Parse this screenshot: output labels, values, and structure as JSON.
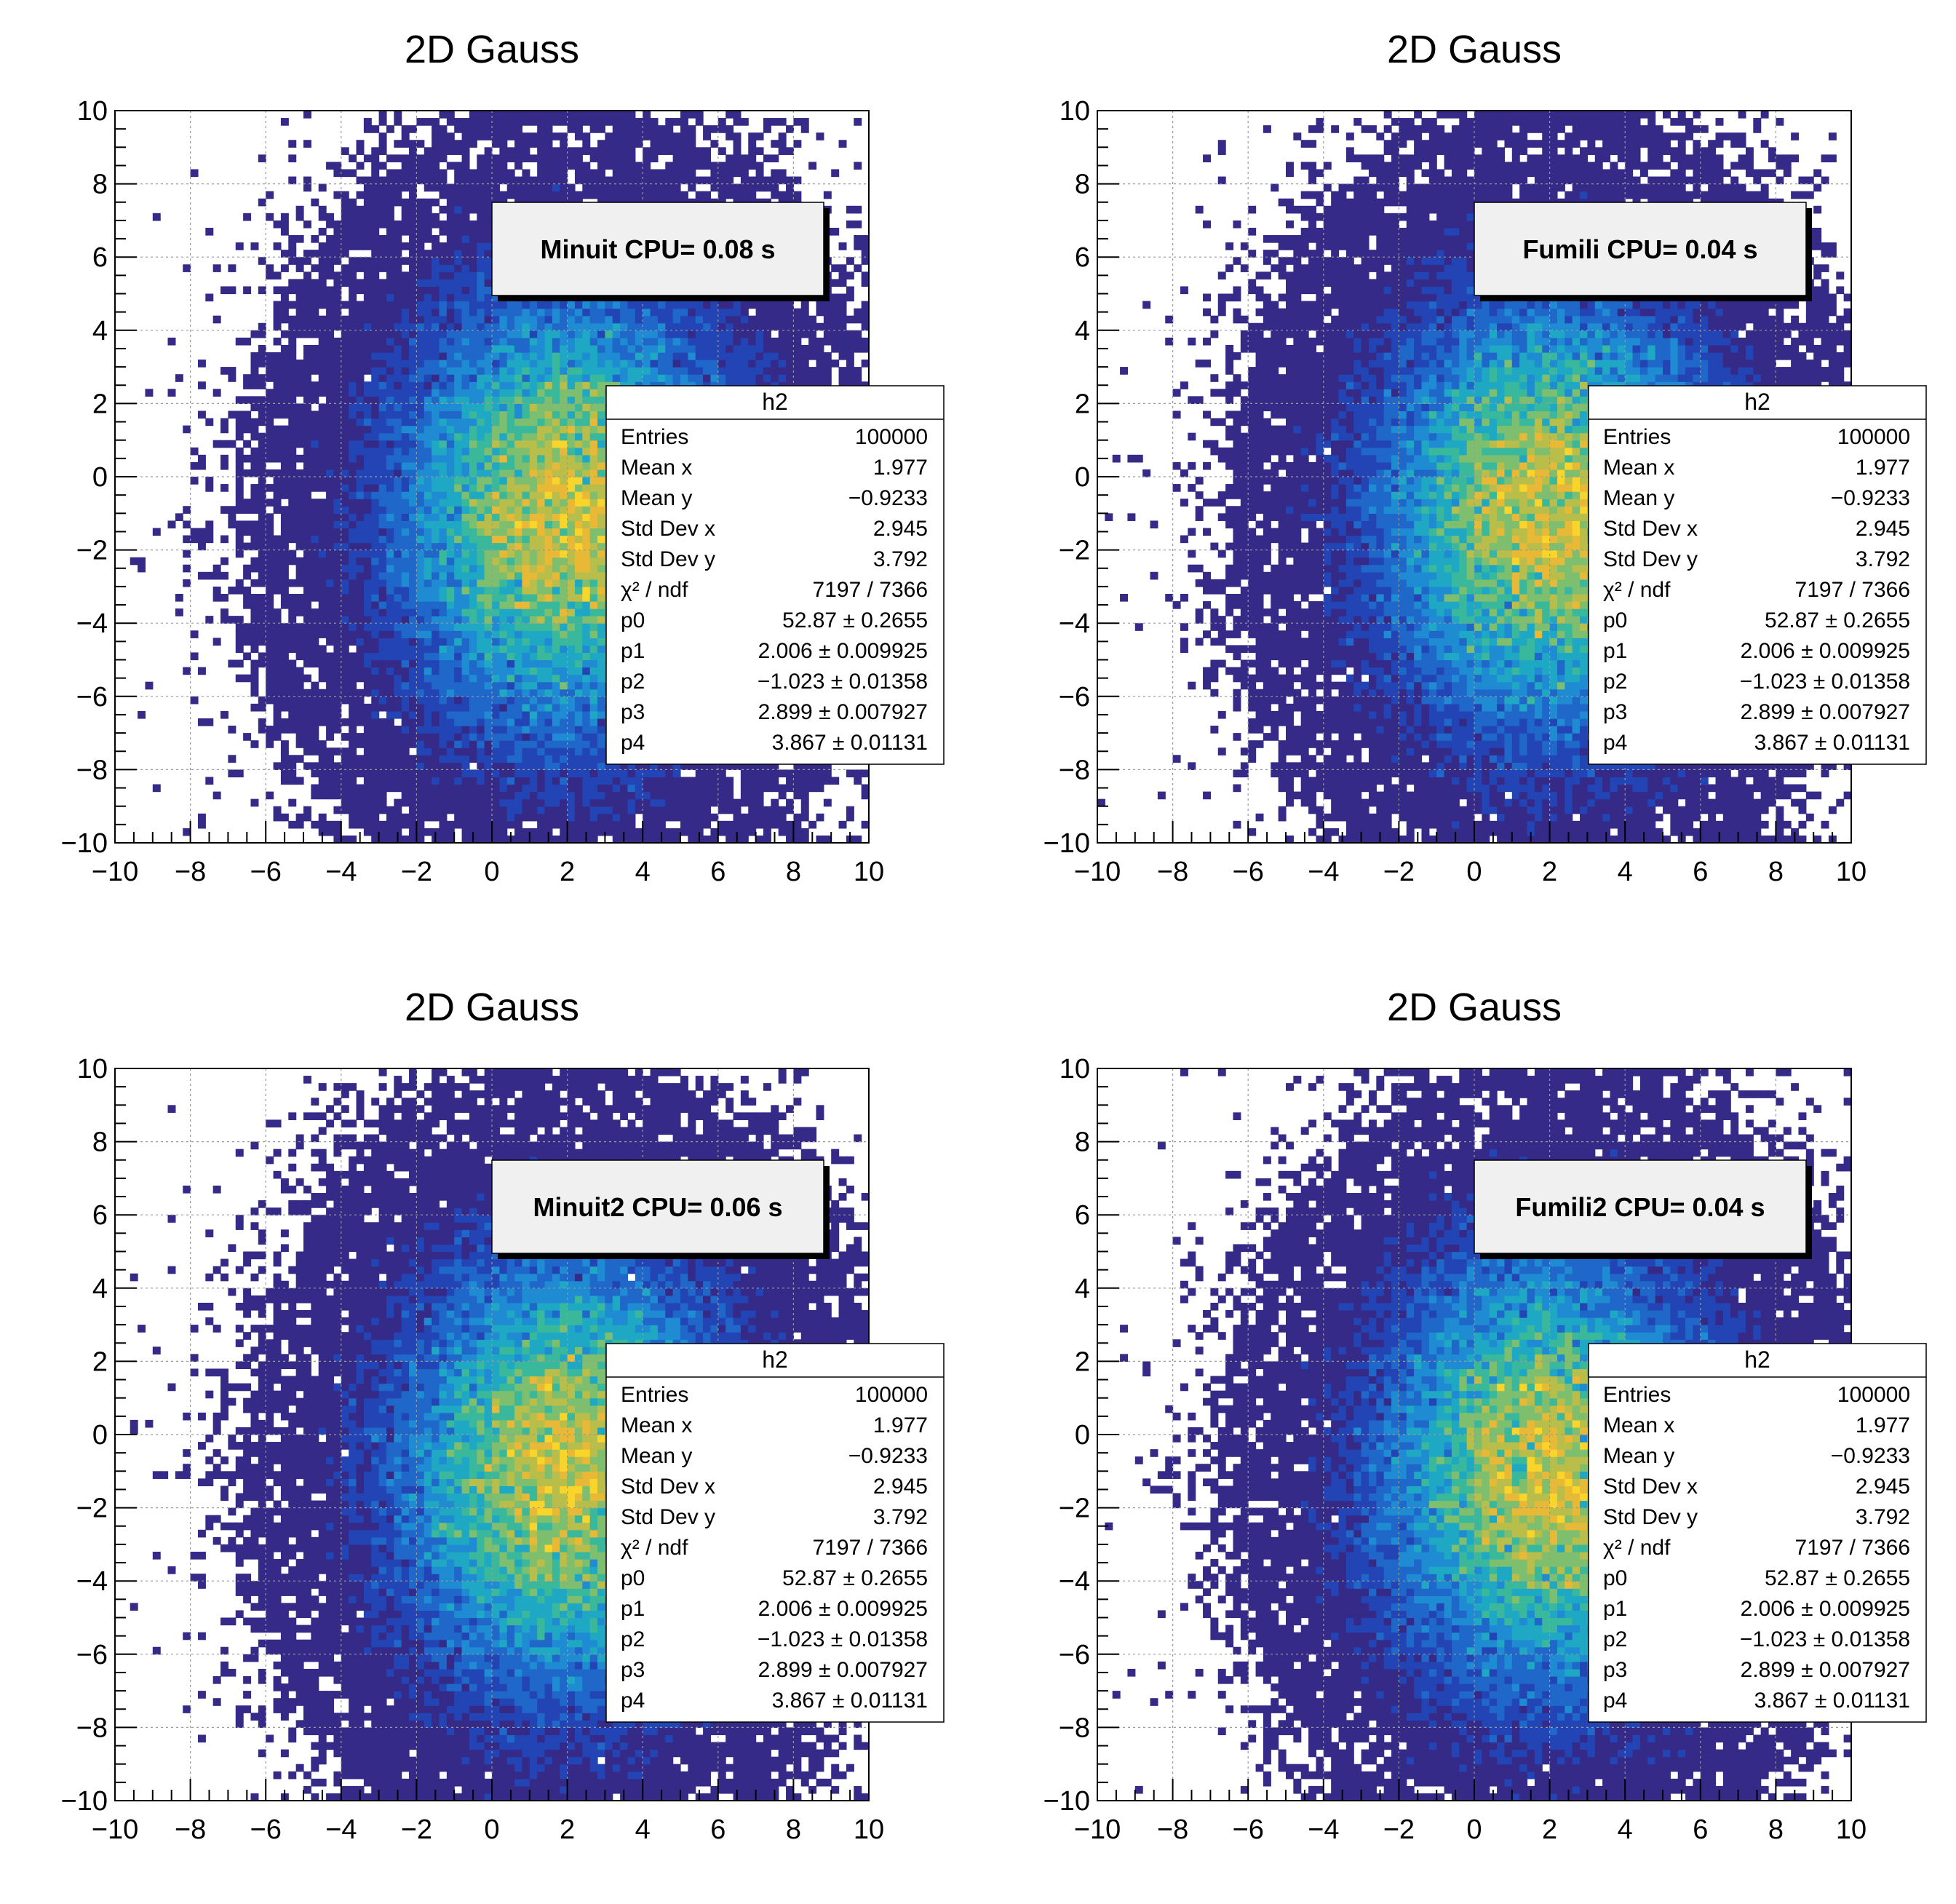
{
  "canvas_title": "",
  "chart_data": [
    {
      "type": "heatmap",
      "title": "2D Gauss",
      "xlabel": "",
      "ylabel": "",
      "xlim": [
        -10,
        10
      ],
      "ylim": [
        -10,
        10
      ],
      "grid": true,
      "x_ticks": [
        -10,
        -8,
        -6,
        -4,
        -2,
        0,
        2,
        4,
        6,
        8,
        10
      ],
      "y_ticks": [
        -10,
        -8,
        -6,
        -4,
        -2,
        0,
        2,
        4,
        6,
        8,
        10
      ],
      "bins_x": 100,
      "bins_y": 100,
      "fit_model": {
        "amplitude": 52.87,
        "mean_x": 2.006,
        "mean_y": -1.023,
        "sigma_x": 2.899,
        "sigma_y": 3.867
      },
      "palette": [
        "#352a87",
        "#2244b5",
        "#1f67c9",
        "#1e8bd2",
        "#1fa8c4",
        "#3ab89b",
        "#7dbf6f",
        "#b9bd4a",
        "#e8b936",
        "#f9d42a"
      ],
      "cpu_label": "Minuit CPU= 0.08 s",
      "stats": {
        "name": "h2",
        "rows": [
          {
            "label": "Entries",
            "value": "100000"
          },
          {
            "label": "Mean x",
            "value": "1.977"
          },
          {
            "label": "Mean y",
            "value": "−0.9233"
          },
          {
            "label": "Std Dev x",
            "value": "2.945"
          },
          {
            "label": "Std Dev y",
            "value": "3.792"
          },
          {
            "label": "χ² / ndf",
            "value": "7197 / 7366"
          },
          {
            "label": "p0",
            "value": "52.87 ± 0.2655"
          },
          {
            "label": "p1",
            "value": "2.006 ± 0.009925"
          },
          {
            "label": "p2",
            "value": "−1.023 ± 0.01358"
          },
          {
            "label": "p3",
            "value": "2.899 ± 0.007927"
          },
          {
            "label": "p4",
            "value": "3.867 ± 0.01131"
          }
        ]
      }
    },
    {
      "type": "heatmap",
      "title": "2D Gauss",
      "xlabel": "",
      "ylabel": "",
      "xlim": [
        -10,
        10
      ],
      "ylim": [
        -10,
        10
      ],
      "grid": true,
      "x_ticks": [
        -10,
        -8,
        -6,
        -4,
        -2,
        0,
        2,
        4,
        6,
        8,
        10
      ],
      "y_ticks": [
        -10,
        -8,
        -6,
        -4,
        -2,
        0,
        2,
        4,
        6,
        8,
        10
      ],
      "bins_x": 100,
      "bins_y": 100,
      "fit_model": {
        "amplitude": 52.87,
        "mean_x": 2.006,
        "mean_y": -1.023,
        "sigma_x": 2.899,
        "sigma_y": 3.867
      },
      "palette": [
        "#352a87",
        "#2244b5",
        "#1f67c9",
        "#1e8bd2",
        "#1fa8c4",
        "#3ab89b",
        "#7dbf6f",
        "#b9bd4a",
        "#e8b936",
        "#f9d42a"
      ],
      "cpu_label": "Fumili CPU= 0.04 s",
      "stats": {
        "name": "h2",
        "rows": [
          {
            "label": "Entries",
            "value": "100000"
          },
          {
            "label": "Mean x",
            "value": "1.977"
          },
          {
            "label": "Mean y",
            "value": "−0.9233"
          },
          {
            "label": "Std Dev x",
            "value": "2.945"
          },
          {
            "label": "Std Dev y",
            "value": "3.792"
          },
          {
            "label": "χ² / ndf",
            "value": "7197 / 7366"
          },
          {
            "label": "p0",
            "value": "52.87 ± 0.2655"
          },
          {
            "label": "p1",
            "value": "2.006 ± 0.009925"
          },
          {
            "label": "p2",
            "value": "−1.023 ± 0.01358"
          },
          {
            "label": "p3",
            "value": "2.899 ± 0.007927"
          },
          {
            "label": "p4",
            "value": "3.867 ± 0.01131"
          }
        ]
      }
    },
    {
      "type": "heatmap",
      "title": "2D Gauss",
      "xlabel": "",
      "ylabel": "",
      "xlim": [
        -10,
        10
      ],
      "ylim": [
        -10,
        10
      ],
      "grid": true,
      "x_ticks": [
        -10,
        -8,
        -6,
        -4,
        -2,
        0,
        2,
        4,
        6,
        8,
        10
      ],
      "y_ticks": [
        -10,
        -8,
        -6,
        -4,
        -2,
        0,
        2,
        4,
        6,
        8,
        10
      ],
      "bins_x": 100,
      "bins_y": 100,
      "fit_model": {
        "amplitude": 52.87,
        "mean_x": 2.006,
        "mean_y": -1.023,
        "sigma_x": 2.899,
        "sigma_y": 3.867
      },
      "palette": [
        "#352a87",
        "#2244b5",
        "#1f67c9",
        "#1e8bd2",
        "#1fa8c4",
        "#3ab89b",
        "#7dbf6f",
        "#b9bd4a",
        "#e8b936",
        "#f9d42a"
      ],
      "cpu_label": "Minuit2 CPU= 0.06 s",
      "stats": {
        "name": "h2",
        "rows": [
          {
            "label": "Entries",
            "value": "100000"
          },
          {
            "label": "Mean x",
            "value": "1.977"
          },
          {
            "label": "Mean y",
            "value": "−0.9233"
          },
          {
            "label": "Std Dev x",
            "value": "2.945"
          },
          {
            "label": "Std Dev y",
            "value": "3.792"
          },
          {
            "label": "χ² / ndf",
            "value": "7197 / 7366"
          },
          {
            "label": "p0",
            "value": "52.87 ± 0.2655"
          },
          {
            "label": "p1",
            "value": "2.006 ± 0.009925"
          },
          {
            "label": "p2",
            "value": "−1.023 ± 0.01358"
          },
          {
            "label": "p3",
            "value": "2.899 ± 0.007927"
          },
          {
            "label": "p4",
            "value": "3.867 ± 0.01131"
          }
        ]
      }
    },
    {
      "type": "heatmap",
      "title": "2D Gauss",
      "xlabel": "",
      "ylabel": "",
      "xlim": [
        -10,
        10
      ],
      "ylim": [
        -10,
        10
      ],
      "grid": true,
      "x_ticks": [
        -10,
        -8,
        -6,
        -4,
        -2,
        0,
        2,
        4,
        6,
        8,
        10
      ],
      "y_ticks": [
        -10,
        -8,
        -6,
        -4,
        -2,
        0,
        2,
        4,
        6,
        8,
        10
      ],
      "bins_x": 100,
      "bins_y": 100,
      "fit_model": {
        "amplitude": 52.87,
        "mean_x": 2.006,
        "mean_y": -1.023,
        "sigma_x": 2.899,
        "sigma_y": 3.867
      },
      "palette": [
        "#352a87",
        "#2244b5",
        "#1f67c9",
        "#1e8bd2",
        "#1fa8c4",
        "#3ab89b",
        "#7dbf6f",
        "#b9bd4a",
        "#e8b936",
        "#f9d42a"
      ],
      "cpu_label": "Fumili2 CPU= 0.04 s",
      "stats": {
        "name": "h2",
        "rows": [
          {
            "label": "Entries",
            "value": "100000"
          },
          {
            "label": "Mean x",
            "value": "1.977"
          },
          {
            "label": "Mean y",
            "value": "−0.9233"
          },
          {
            "label": "Std Dev x",
            "value": "2.945"
          },
          {
            "label": "Std Dev y",
            "value": "3.792"
          },
          {
            "label": "χ² / ndf",
            "value": "7197 / 7366"
          },
          {
            "label": "p0",
            "value": "52.87 ± 0.2655"
          },
          {
            "label": "p1",
            "value": "2.006 ± 0.009925"
          },
          {
            "label": "p2",
            "value": "−1.023 ± 0.01358"
          },
          {
            "label": "p3",
            "value": "2.899 ± 0.007927"
          },
          {
            "label": "p4",
            "value": "3.867 ± 0.01131"
          }
        ]
      }
    }
  ]
}
